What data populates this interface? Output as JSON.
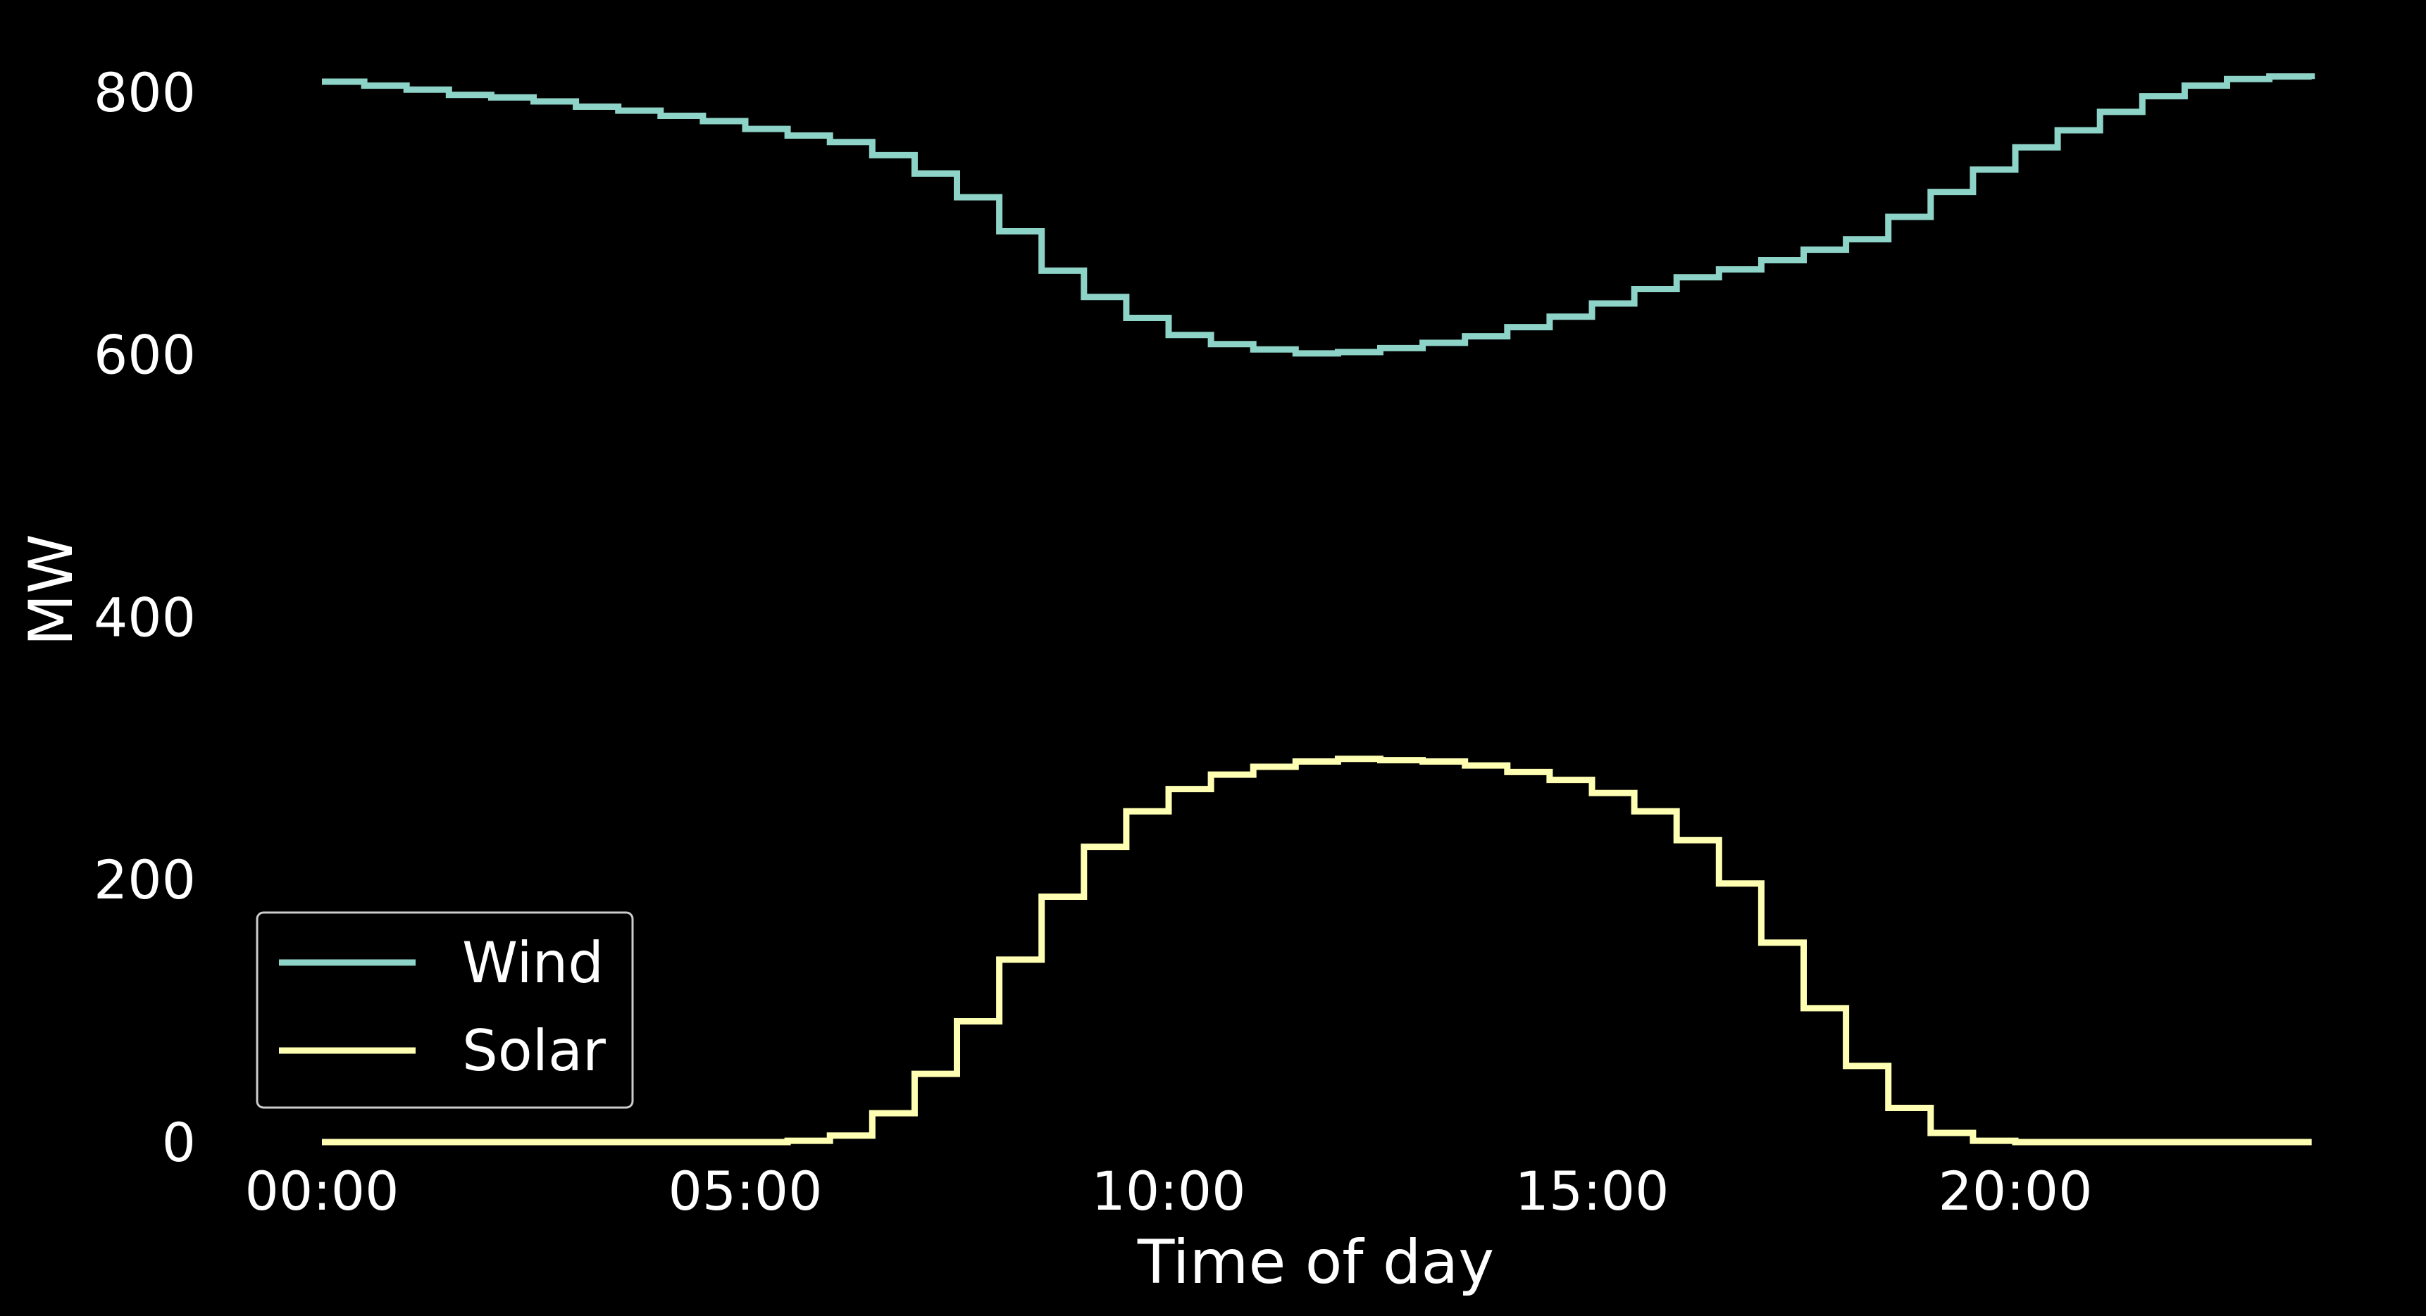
{
  "chart_data": {
    "type": "line",
    "step": true,
    "title": "",
    "xlabel": "Time of day",
    "ylabel": "MW",
    "x_unit": "hours",
    "xlim": [
      -1.12,
      24.2
    ],
    "ylim": [
      0,
      818
    ],
    "x_ticks": [
      {
        "value": 0,
        "label": "00:00"
      },
      {
        "value": 5,
        "label": "05:00"
      },
      {
        "value": 10,
        "label": "10:00"
      },
      {
        "value": 15,
        "label": "15:00"
      },
      {
        "value": 20,
        "label": "20:00"
      }
    ],
    "y_ticks": [
      {
        "value": 0,
        "label": "0"
      },
      {
        "value": 200,
        "label": "200"
      },
      {
        "value": 400,
        "label": "400"
      },
      {
        "value": 600,
        "label": "600"
      },
      {
        "value": 800,
        "label": "800"
      }
    ],
    "grid": false,
    "legend_position": "lower-left",
    "background": "#000000",
    "x": [
      "00:00",
      "00:30",
      "01:00",
      "01:30",
      "02:00",
      "02:30",
      "03:00",
      "03:30",
      "04:00",
      "04:30",
      "05:00",
      "05:30",
      "06:00",
      "06:30",
      "07:00",
      "07:30",
      "08:00",
      "08:30",
      "09:00",
      "09:30",
      "10:00",
      "10:30",
      "11:00",
      "11:30",
      "12:00",
      "12:30",
      "13:00",
      "13:30",
      "14:00",
      "14:30",
      "15:00",
      "15:30",
      "16:00",
      "16:30",
      "17:00",
      "17:30",
      "18:00",
      "18:30",
      "19:00",
      "19:30",
      "20:00",
      "20:30",
      "21:00",
      "21:30",
      "22:00",
      "22:30",
      "23:00",
      "23:30"
    ],
    "series": [
      {
        "name": "Wind",
        "color": "#8dd3c7",
        "values": [
          808,
          805,
          802,
          798,
          796,
          793,
          789,
          786,
          782,
          778,
          772,
          767,
          762,
          752,
          738,
          720,
          694,
          664,
          644,
          628,
          615,
          608,
          604,
          601,
          602,
          605,
          609,
          614,
          621,
          629,
          639,
          650,
          659,
          665,
          672,
          680,
          688,
          705,
          724,
          741,
          758,
          771,
          785,
          797,
          805,
          810,
          812,
          810
        ]
      },
      {
        "name": "Solar",
        "color": "#ffffb3",
        "values": [
          0,
          0,
          0,
          0,
          0,
          0,
          0,
          0,
          0,
          0,
          0,
          1,
          5,
          22,
          52,
          92,
          139,
          187,
          225,
          252,
          269,
          280,
          286,
          290,
          292,
          291,
          290,
          287,
          282,
          276,
          266,
          252,
          230,
          197,
          152,
          102,
          58,
          26,
          7,
          1,
          0,
          0,
          0,
          0,
          0,
          0,
          0,
          0
        ]
      }
    ]
  }
}
